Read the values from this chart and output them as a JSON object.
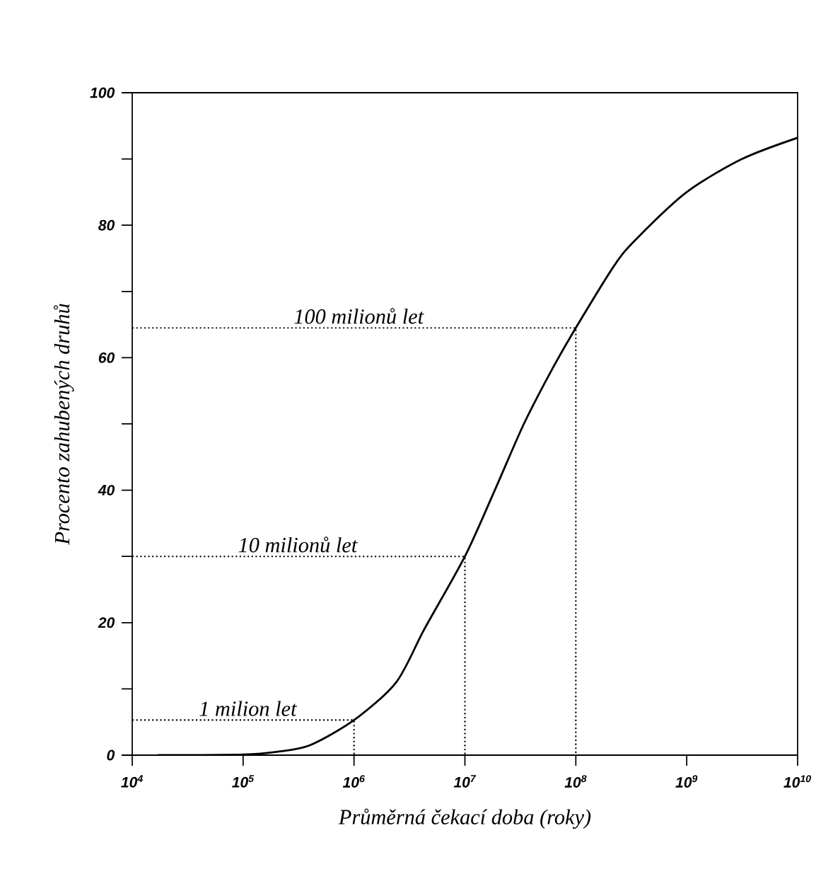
{
  "chart_data": {
    "type": "line",
    "xlabel": "Průměrná čekací doba (roky)",
    "ylabel": "Procento zahubených druhů",
    "log": "x",
    "grid": false,
    "marker": "none",
    "series": [
      {
        "color": "#000000",
        "line_style": "solid",
        "x": [
          17000,
          100000,
          200000,
          400000,
          1000000,
          2400000,
          4300000,
          10000000,
          18600000,
          34000000,
          60000000,
          100000000,
          224000000,
          355000000,
          1000000000,
          3160000000,
          10000000000
        ],
        "values": [
          0,
          0.1,
          0.5,
          1.5,
          5.3,
          11,
          19,
          30,
          40,
          50,
          58,
          64.5,
          74,
          78,
          85,
          90,
          93.2
        ]
      },
      {
        "color": "#000000",
        "line_style": "dotted",
        "x": [
          10000,
          1000000,
          1000000
        ],
        "values": [
          5.3,
          5.3,
          0
        ]
      },
      {
        "color": "#000000",
        "line_style": "dotted",
        "x": [
          10000,
          10000000,
          10000000
        ],
        "values": [
          30,
          30,
          0
        ]
      },
      {
        "color": "#000000",
        "line_style": "dotted",
        "x": [
          10000,
          100000000,
          100000000
        ],
        "values": [
          64.5,
          64.5,
          0
        ]
      }
    ],
    "xlim": [
      10000,
      10000000000
    ],
    "ylim": [
      0,
      100
    ],
    "xticks": [
      {
        "value": 10000,
        "label": "10$^{4}$"
      },
      {
        "value": 100000,
        "label": "10$^{5}$"
      },
      {
        "value": 1000000,
        "label": "10$^{6}$"
      },
      {
        "value": 10000000,
        "label": "10$^{7}$"
      },
      {
        "value": 100000000,
        "label": "10$^{8}$"
      },
      {
        "value": 1000000000,
        "label": "10$^{9}$"
      },
      {
        "value": 10000000000,
        "label": "10$^{10}$"
      }
    ],
    "yticks": [
      0,
      {
        "value": 10,
        "label": null
      },
      20,
      {
        "value": 30,
        "label": null
      },
      40,
      {
        "value": 50,
        "label": null
      },
      60,
      {
        "value": 70,
        "label": null
      },
      80,
      {
        "value": 90,
        "label": null
      },
      100
    ],
    "annotations": [
      {
        "text": "1 milion let",
        "x": 110000,
        "y": 5.3
      },
      {
        "text": "10 milionů let",
        "x": 310000,
        "y": 30
      },
      {
        "text": "100 milionů let",
        "x": 1100000,
        "y": 64.5
      }
    ]
  }
}
